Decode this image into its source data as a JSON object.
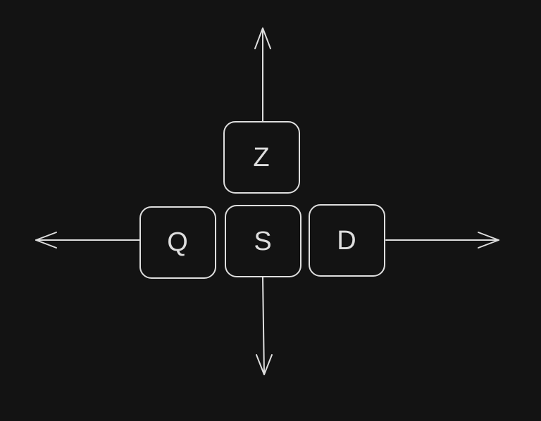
{
  "keys": {
    "up": "Z",
    "left": "Q",
    "down": "S",
    "right": "D"
  },
  "colors": {
    "background": "#131313",
    "stroke": "#dedede"
  }
}
